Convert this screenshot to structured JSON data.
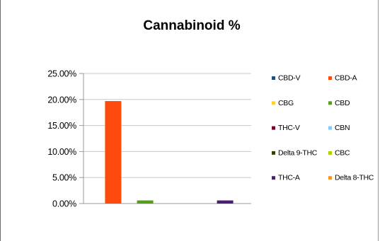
{
  "chart_data": {
    "type": "bar",
    "title": "Cannabinoid %",
    "xlabel": "",
    "ylabel": "",
    "ylim": [
      0,
      25
    ],
    "y_ticks": [
      0,
      5,
      10,
      15,
      20,
      25
    ],
    "y_tick_labels": [
      "0.00%",
      "5.00%",
      "10.00%",
      "15.00%",
      "20.00%",
      "25.00%"
    ],
    "grid": true,
    "legend_position": "right",
    "categories": [
      ""
    ],
    "series": [
      {
        "name": "CBD-V",
        "values": [
          0
        ],
        "color": "#1F4E79"
      },
      {
        "name": "CBD-A",
        "values": [
          19.7
        ],
        "color": "#FF4A0E"
      },
      {
        "name": "CBG",
        "values": [
          0
        ],
        "color": "#FFD320"
      },
      {
        "name": "CBD",
        "values": [
          0.6
        ],
        "color": "#579D1C"
      },
      {
        "name": "THC-V",
        "values": [
          0
        ],
        "color": "#7E0021"
      },
      {
        "name": "CBN",
        "values": [
          0
        ],
        "color": "#83CAFF"
      },
      {
        "name": "Delta 9-THC",
        "values": [
          0
        ],
        "color": "#314004"
      },
      {
        "name": "CBC",
        "values": [
          0
        ],
        "color": "#AECF00"
      },
      {
        "name": "THC-A",
        "values": [
          0.6
        ],
        "color": "#4B1F6F"
      },
      {
        "name": "Delta 8-THC",
        "values": [
          0
        ],
        "color": "#FF950E"
      }
    ]
  }
}
